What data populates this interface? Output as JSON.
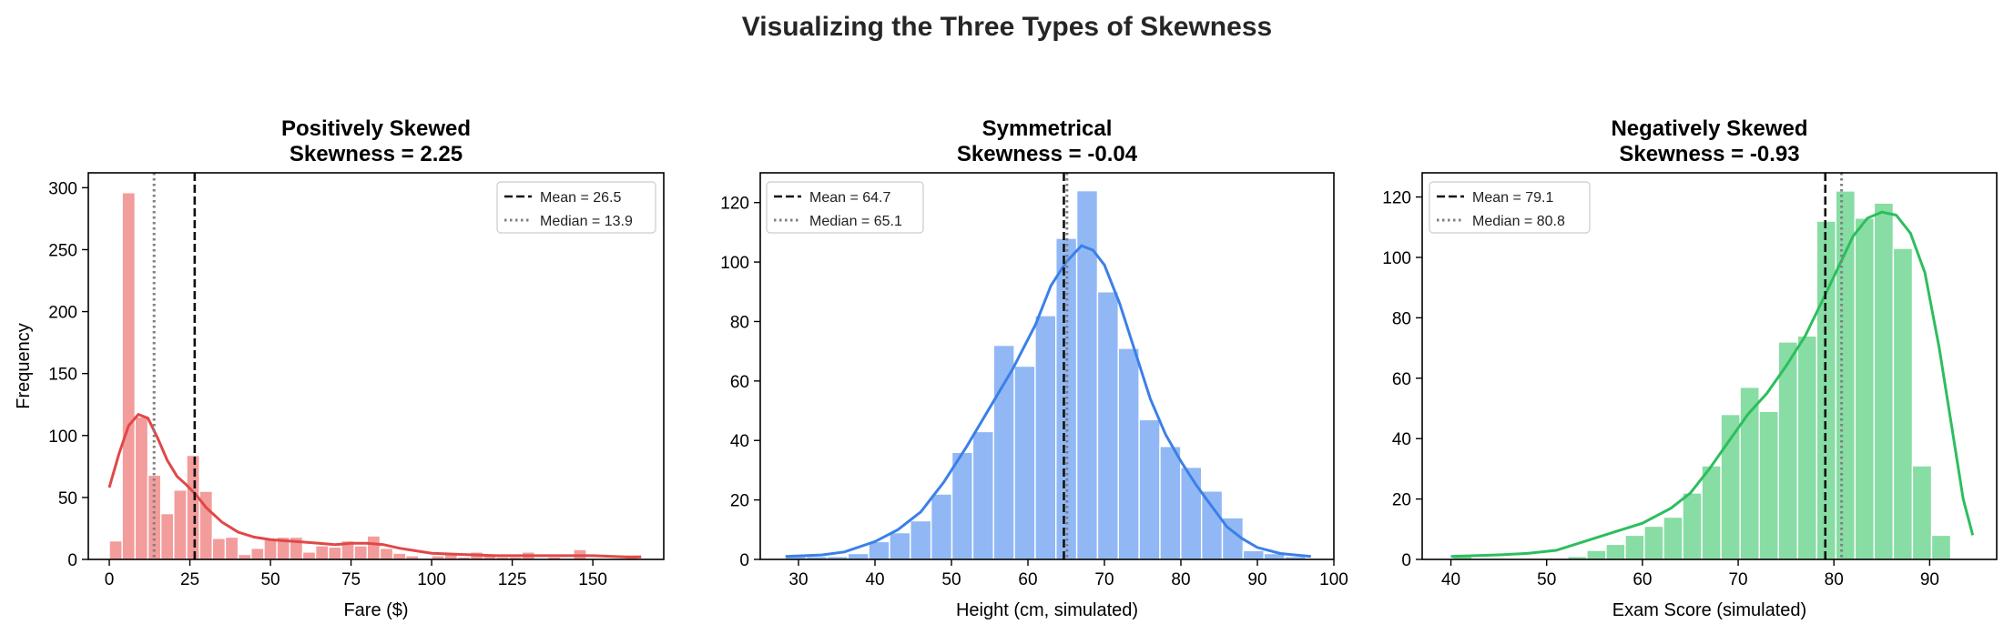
{
  "figure": {
    "title": "Visualizing the Three Types of Skewness"
  },
  "chart_data": [
    {
      "type": "bar",
      "kind": "histogram",
      "title": "Positively Skewed",
      "subtitle": "Skewness = 2.25",
      "xlabel": "Fare ($)",
      "ylabel": "Frequency",
      "xlim": [
        -6.5,
        172
      ],
      "ylim": [
        0,
        312
      ],
      "xticks": [
        0,
        25,
        50,
        75,
        100,
        125,
        150
      ],
      "yticks": [
        0,
        50,
        100,
        150,
        200,
        250,
        300
      ],
      "bin_start": 0,
      "bin_width": 4.0,
      "counts": [
        15,
        296,
        115,
        68,
        37,
        56,
        84,
        55,
        17,
        18,
        4,
        9,
        16,
        18,
        18,
        6,
        11,
        10,
        15,
        11,
        19,
        9,
        5,
        3,
        1,
        3,
        4,
        2,
        6,
        4,
        2,
        2,
        6,
        0,
        2,
        1,
        8,
        1,
        1,
        1,
        2
      ],
      "kde": [
        [
          0,
          58
        ],
        [
          3,
          85
        ],
        [
          6,
          108
        ],
        [
          9,
          117
        ],
        [
          12,
          114
        ],
        [
          15,
          98
        ],
        [
          18,
          80
        ],
        [
          21,
          67
        ],
        [
          24,
          60
        ],
        [
          27,
          52
        ],
        [
          30,
          42
        ],
        [
          35,
          30
        ],
        [
          40,
          22
        ],
        [
          45,
          18
        ],
        [
          50,
          16
        ],
        [
          55,
          15
        ],
        [
          60,
          14
        ],
        [
          65,
          13
        ],
        [
          70,
          12
        ],
        [
          75,
          13
        ],
        [
          80,
          13
        ],
        [
          85,
          12
        ],
        [
          90,
          9
        ],
        [
          95,
          7
        ],
        [
          100,
          5
        ],
        [
          110,
          4
        ],
        [
          120,
          3
        ],
        [
          130,
          3
        ],
        [
          140,
          3
        ],
        [
          150,
          3
        ],
        [
          160,
          2
        ],
        [
          165,
          2
        ]
      ],
      "mean": 26.5,
      "median": 13.9,
      "legend": {
        "mean": "Mean = 26.5",
        "median": "Median = 13.9",
        "position": "upper right"
      },
      "color": "#e04848",
      "bar_color": "#f39c9c"
    },
    {
      "type": "bar",
      "kind": "histogram",
      "title": "Symmetrical",
      "subtitle": "Skewness = -0.04",
      "xlabel": "Height (cm, simulated)",
      "ylabel": "",
      "xlim": [
        25,
        100
      ],
      "ylim": [
        0,
        130
      ],
      "xticks": [
        30,
        40,
        50,
        60,
        70,
        80,
        90,
        100
      ],
      "yticks": [
        0,
        20,
        40,
        60,
        80,
        100,
        120
      ],
      "bin_start": 28.3,
      "bin_width": 2.72,
      "counts": [
        1,
        1,
        1,
        2,
        6,
        9,
        13,
        22,
        36,
        43,
        72,
        65,
        82,
        108,
        124,
        90,
        71,
        47,
        38,
        31,
        23,
        14,
        3,
        2,
        1
      ],
      "kde": [
        [
          28.3,
          1
        ],
        [
          33,
          1.5
        ],
        [
          36,
          2.5
        ],
        [
          40,
          6
        ],
        [
          43,
          10
        ],
        [
          46,
          16
        ],
        [
          49,
          26
        ],
        [
          52,
          38
        ],
        [
          55,
          51
        ],
        [
          58,
          64
        ],
        [
          61,
          79
        ],
        [
          63,
          92
        ],
        [
          65,
          100
        ],
        [
          67,
          105.5
        ],
        [
          68.5,
          104
        ],
        [
          70,
          99
        ],
        [
          72,
          86
        ],
        [
          74,
          70
        ],
        [
          76,
          54
        ],
        [
          78,
          42
        ],
        [
          80,
          33
        ],
        [
          82,
          25
        ],
        [
          84,
          18
        ],
        [
          86,
          11
        ],
        [
          88,
          7
        ],
        [
          90,
          4
        ],
        [
          93,
          2
        ],
        [
          97,
          1
        ]
      ],
      "mean": 64.7,
      "median": 65.1,
      "legend": {
        "mean": "Mean = 64.7",
        "median": "Median = 65.1",
        "position": "upper left"
      },
      "color": "#3b80e8",
      "bar_color": "#91b8f5"
    },
    {
      "type": "bar",
      "kind": "histogram",
      "title": "Negatively Skewed",
      "subtitle": "Skewness = -0.93",
      "xlabel": "Exam Score (simulated)",
      "ylabel": "",
      "xlim": [
        37,
        97
      ],
      "ylim": [
        0,
        128
      ],
      "xticks": [
        40,
        50,
        60,
        70,
        80,
        90
      ],
      "yticks": [
        0,
        20,
        40,
        60,
        80,
        100,
        120
      ],
      "bin_start": 40.2,
      "bin_width": 2.0,
      "counts": [
        1,
        0,
        0,
        0,
        0,
        0,
        1,
        3,
        5,
        8,
        11,
        14,
        22,
        31,
        48,
        57,
        49,
        72,
        74,
        112,
        122,
        113,
        118,
        103,
        31,
        8
      ],
      "kde": [
        [
          40,
          1
        ],
        [
          45,
          1.5
        ],
        [
          48,
          2
        ],
        [
          51,
          3
        ],
        [
          54,
          6
        ],
        [
          57,
          9
        ],
        [
          60,
          12
        ],
        [
          63,
          17
        ],
        [
          65,
          22
        ],
        [
          67,
          30
        ],
        [
          69,
          39
        ],
        [
          71,
          48
        ],
        [
          73,
          55
        ],
        [
          75,
          64
        ],
        [
          77,
          74
        ],
        [
          79,
          87
        ],
        [
          80.5,
          97
        ],
        [
          82,
          107
        ],
        [
          83.5,
          113
        ],
        [
          85,
          115
        ],
        [
          86.5,
          114
        ],
        [
          88,
          108
        ],
        [
          89.5,
          95
        ],
        [
          91,
          70
        ],
        [
          92.5,
          40
        ],
        [
          93.5,
          20
        ],
        [
          94.5,
          8
        ]
      ],
      "mean": 79.1,
      "median": 80.8,
      "legend": {
        "mean": "Mean = 79.1",
        "median": "Median = 80.8",
        "position": "upper left"
      },
      "color": "#2dbe5e",
      "bar_color": "#87ddA3"
    }
  ]
}
